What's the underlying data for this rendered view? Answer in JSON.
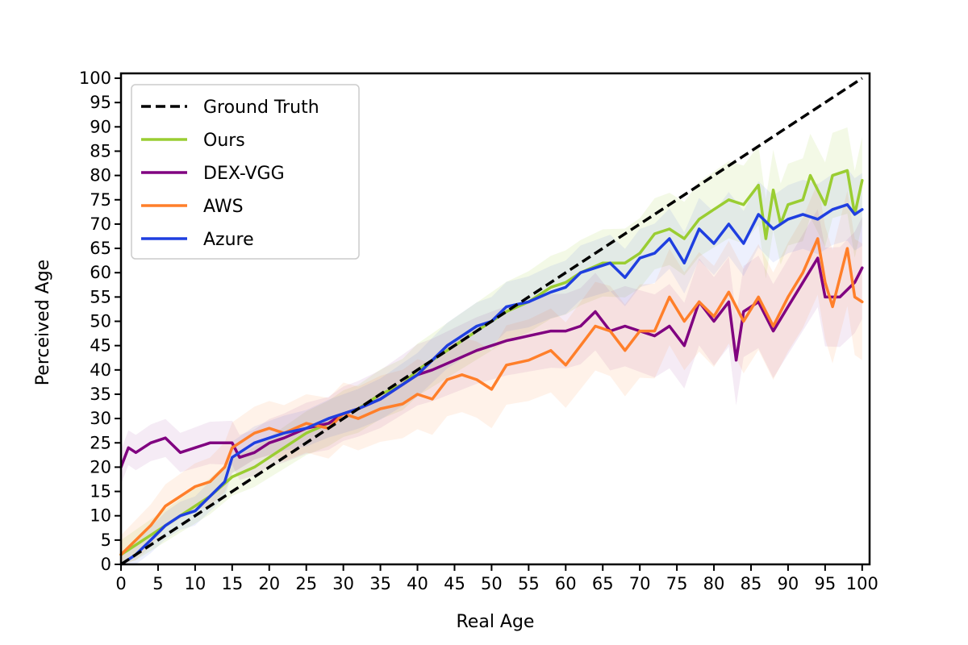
{
  "chart_data": {
    "type": "line",
    "xlabel": "Real Age",
    "ylabel": "Perceived Age",
    "xlim": [
      0,
      101
    ],
    "ylim": [
      0,
      101
    ],
    "xticks": [
      0,
      5,
      10,
      15,
      20,
      25,
      30,
      35,
      40,
      45,
      50,
      55,
      60,
      65,
      70,
      75,
      80,
      85,
      90,
      95,
      100
    ],
    "yticks": [
      0,
      5,
      10,
      15,
      20,
      25,
      30,
      35,
      40,
      45,
      50,
      55,
      60,
      65,
      70,
      75,
      80,
      85,
      90,
      95,
      100
    ],
    "grid": false,
    "legend_position": "top-left",
    "series": [
      {
        "name": "Ground Truth",
        "color": "#000000",
        "style": "dashed",
        "points": [
          [
            0,
            0
          ],
          [
            100,
            100
          ]
        ]
      },
      {
        "name": "Ours",
        "color": "#9acd32",
        "style": "solid",
        "points": [
          [
            0,
            2
          ],
          [
            2,
            4
          ],
          [
            4,
            6
          ],
          [
            6,
            8
          ],
          [
            8,
            10
          ],
          [
            10,
            12
          ],
          [
            12,
            14
          ],
          [
            15,
            18
          ],
          [
            18,
            20
          ],
          [
            20,
            22
          ],
          [
            22,
            24
          ],
          [
            25,
            27
          ],
          [
            28,
            29
          ],
          [
            30,
            31
          ],
          [
            32,
            32
          ],
          [
            35,
            35
          ],
          [
            38,
            37
          ],
          [
            40,
            40
          ],
          [
            42,
            42
          ],
          [
            45,
            45
          ],
          [
            48,
            48
          ],
          [
            50,
            50
          ],
          [
            52,
            52
          ],
          [
            55,
            54
          ],
          [
            58,
            57
          ],
          [
            60,
            58
          ],
          [
            62,
            60
          ],
          [
            65,
            62
          ],
          [
            68,
            62
          ],
          [
            70,
            64
          ],
          [
            72,
            68
          ],
          [
            74,
            69
          ],
          [
            76,
            67
          ],
          [
            78,
            71
          ],
          [
            80,
            73
          ],
          [
            82,
            75
          ],
          [
            84,
            74
          ],
          [
            86,
            78
          ],
          [
            87,
            67
          ],
          [
            88,
            77
          ],
          [
            89,
            70
          ],
          [
            90,
            74
          ],
          [
            92,
            75
          ],
          [
            93,
            80
          ],
          [
            95,
            74
          ],
          [
            96,
            80
          ],
          [
            98,
            81
          ],
          [
            99,
            72
          ],
          [
            100,
            79
          ]
        ]
      },
      {
        "name": "DEX-VGG",
        "color": "#800080",
        "style": "solid",
        "points": [
          [
            0,
            20
          ],
          [
            1,
            24
          ],
          [
            2,
            23
          ],
          [
            4,
            25
          ],
          [
            6,
            26
          ],
          [
            8,
            23
          ],
          [
            10,
            24
          ],
          [
            12,
            25
          ],
          [
            15,
            25
          ],
          [
            16,
            22
          ],
          [
            18,
            23
          ],
          [
            20,
            25
          ],
          [
            22,
            26
          ],
          [
            25,
            28
          ],
          [
            28,
            29
          ],
          [
            30,
            31
          ],
          [
            32,
            32
          ],
          [
            35,
            34
          ],
          [
            38,
            37
          ],
          [
            40,
            39
          ],
          [
            42,
            40
          ],
          [
            45,
            42
          ],
          [
            48,
            44
          ],
          [
            50,
            45
          ],
          [
            52,
            46
          ],
          [
            55,
            47
          ],
          [
            58,
            48
          ],
          [
            60,
            48
          ],
          [
            62,
            49
          ],
          [
            64,
            52
          ],
          [
            66,
            48
          ],
          [
            68,
            49
          ],
          [
            70,
            48
          ],
          [
            72,
            47
          ],
          [
            74,
            49
          ],
          [
            76,
            45
          ],
          [
            78,
            54
          ],
          [
            80,
            50
          ],
          [
            82,
            54
          ],
          [
            83,
            42
          ],
          [
            84,
            52
          ],
          [
            86,
            54
          ],
          [
            88,
            48
          ],
          [
            90,
            53
          ],
          [
            92,
            58
          ],
          [
            94,
            63
          ],
          [
            95,
            55
          ],
          [
            97,
            55
          ],
          [
            99,
            58
          ],
          [
            100,
            61
          ]
        ]
      },
      {
        "name": "AWS",
        "color": "#ff7f2a",
        "style": "solid",
        "points": [
          [
            0,
            2
          ],
          [
            2,
            5
          ],
          [
            4,
            8
          ],
          [
            6,
            12
          ],
          [
            8,
            14
          ],
          [
            10,
            16
          ],
          [
            12,
            17
          ],
          [
            14,
            20
          ],
          [
            15,
            24
          ],
          [
            18,
            27
          ],
          [
            20,
            28
          ],
          [
            22,
            27
          ],
          [
            25,
            29
          ],
          [
            28,
            28
          ],
          [
            30,
            31
          ],
          [
            32,
            30
          ],
          [
            35,
            32
          ],
          [
            38,
            33
          ],
          [
            40,
            35
          ],
          [
            42,
            34
          ],
          [
            44,
            38
          ],
          [
            46,
            39
          ],
          [
            48,
            38
          ],
          [
            50,
            36
          ],
          [
            52,
            41
          ],
          [
            55,
            42
          ],
          [
            58,
            44
          ],
          [
            60,
            41
          ],
          [
            62,
            45
          ],
          [
            64,
            49
          ],
          [
            66,
            48
          ],
          [
            68,
            44
          ],
          [
            70,
            48
          ],
          [
            72,
            48
          ],
          [
            74,
            55
          ],
          [
            76,
            50
          ],
          [
            78,
            54
          ],
          [
            80,
            51
          ],
          [
            82,
            56
          ],
          [
            84,
            50
          ],
          [
            86,
            55
          ],
          [
            88,
            49
          ],
          [
            90,
            55
          ],
          [
            92,
            60
          ],
          [
            94,
            67
          ],
          [
            95,
            58
          ],
          [
            96,
            53
          ],
          [
            98,
            65
          ],
          [
            99,
            55
          ],
          [
            100,
            54
          ]
        ]
      },
      {
        "name": "Azure",
        "color": "#1f3fe0",
        "style": "solid",
        "points": [
          [
            0,
            0
          ],
          [
            2,
            2
          ],
          [
            4,
            5
          ],
          [
            6,
            8
          ],
          [
            8,
            10
          ],
          [
            10,
            11
          ],
          [
            12,
            14
          ],
          [
            14,
            17
          ],
          [
            15,
            22
          ],
          [
            18,
            25
          ],
          [
            20,
            26
          ],
          [
            22,
            27
          ],
          [
            25,
            28
          ],
          [
            28,
            30
          ],
          [
            30,
            31
          ],
          [
            32,
            32
          ],
          [
            35,
            34
          ],
          [
            38,
            37
          ],
          [
            40,
            39
          ],
          [
            42,
            42
          ],
          [
            44,
            45
          ],
          [
            46,
            47
          ],
          [
            48,
            49
          ],
          [
            50,
            50
          ],
          [
            52,
            53
          ],
          [
            55,
            54
          ],
          [
            58,
            56
          ],
          [
            60,
            57
          ],
          [
            62,
            60
          ],
          [
            64,
            61
          ],
          [
            66,
            62
          ],
          [
            68,
            59
          ],
          [
            70,
            63
          ],
          [
            72,
            64
          ],
          [
            74,
            67
          ],
          [
            76,
            62
          ],
          [
            78,
            69
          ],
          [
            80,
            66
          ],
          [
            82,
            70
          ],
          [
            84,
            66
          ],
          [
            86,
            72
          ],
          [
            88,
            69
          ],
          [
            90,
            71
          ],
          [
            92,
            72
          ],
          [
            94,
            71
          ],
          [
            96,
            73
          ],
          [
            98,
            74
          ],
          [
            99,
            72
          ],
          [
            100,
            73
          ]
        ]
      }
    ],
    "bands": [
      {
        "series": "Ours",
        "color": "#9acd32",
        "opacity": 0.12,
        "spread": 6
      },
      {
        "series": "DEX-VGG",
        "color": "#800080",
        "opacity": 0.08,
        "spread": 7
      },
      {
        "series": "AWS",
        "color": "#ff7f2a",
        "opacity": 0.1,
        "spread": 8
      },
      {
        "series": "Azure",
        "color": "#1f3fe0",
        "opacity": 0.08,
        "spread": 5
      }
    ]
  }
}
